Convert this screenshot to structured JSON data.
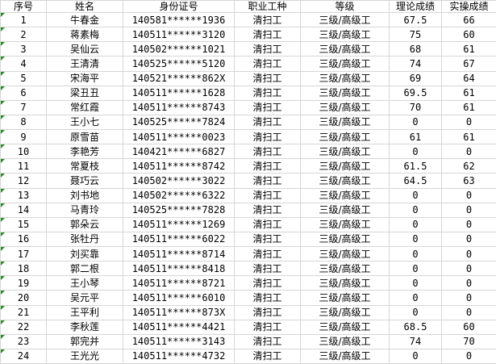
{
  "sheet": {
    "columns": [
      {
        "key": "index",
        "label": "序号"
      },
      {
        "key": "name",
        "label": "姓名"
      },
      {
        "key": "id_number",
        "label": "身份证号"
      },
      {
        "key": "occupation",
        "label": "职业工种"
      },
      {
        "key": "level",
        "label": "等级"
      },
      {
        "key": "theory_score",
        "label": "理论成绩"
      },
      {
        "key": "practical_score",
        "label": "实操成绩"
      }
    ],
    "rows": [
      {
        "index": "1",
        "name": "牛春金",
        "id_number": "140581******1936",
        "occupation": "清扫工",
        "level": "三级/高级工",
        "theory_score": "67.5",
        "practical_score": "66"
      },
      {
        "index": "2",
        "name": "蒋素梅",
        "id_number": "140511******3120",
        "occupation": "清扫工",
        "level": "三级/高级工",
        "theory_score": "75",
        "practical_score": "60"
      },
      {
        "index": "3",
        "name": "吴仙云",
        "id_number": "140502******1021",
        "occupation": "清扫工",
        "level": "三级/高级工",
        "theory_score": "68",
        "practical_score": "61"
      },
      {
        "index": "4",
        "name": "王清清",
        "id_number": "140525******5120",
        "occupation": "清扫工",
        "level": "三级/高级工",
        "theory_score": "74",
        "practical_score": "67"
      },
      {
        "index": "5",
        "name": "宋海平",
        "id_number": "140521******862X",
        "occupation": "清扫工",
        "level": "三级/高级工",
        "theory_score": "69",
        "practical_score": "64"
      },
      {
        "index": "6",
        "name": "梁丑丑",
        "id_number": "140511******1628",
        "occupation": "清扫工",
        "level": "三级/高级工",
        "theory_score": "69.5",
        "practical_score": "61"
      },
      {
        "index": "7",
        "name": "常红霞",
        "id_number": "140511******8743",
        "occupation": "清扫工",
        "level": "三级/高级工",
        "theory_score": "70",
        "practical_score": "61"
      },
      {
        "index": "8",
        "name": "王小七",
        "id_number": "140525******7824",
        "occupation": "清扫工",
        "level": "三级/高级工",
        "theory_score": "0",
        "practical_score": "0"
      },
      {
        "index": "9",
        "name": "原雪苗",
        "id_number": "140511******0023",
        "occupation": "清扫工",
        "level": "三级/高级工",
        "theory_score": "61",
        "practical_score": "61"
      },
      {
        "index": "10",
        "name": "李艳芳",
        "id_number": "140421******6827",
        "occupation": "清扫工",
        "level": "三级/高级工",
        "theory_score": "0",
        "practical_score": "0"
      },
      {
        "index": "11",
        "name": "常夏枝",
        "id_number": "140511******8742",
        "occupation": "清扫工",
        "level": "三级/高级工",
        "theory_score": "61.5",
        "practical_score": "62"
      },
      {
        "index": "12",
        "name": "聂巧云",
        "id_number": "140502******3022",
        "occupation": "清扫工",
        "level": "三级/高级工",
        "theory_score": "64.5",
        "practical_score": "63"
      },
      {
        "index": "13",
        "name": "刘书地",
        "id_number": "140502******6322",
        "occupation": "清扫工",
        "level": "三级/高级工",
        "theory_score": "0",
        "practical_score": "0"
      },
      {
        "index": "14",
        "name": "马青玲",
        "id_number": "140525******7828",
        "occupation": "清扫工",
        "level": "三级/高级工",
        "theory_score": "0",
        "practical_score": "0"
      },
      {
        "index": "15",
        "name": "郭朵云",
        "id_number": "140511******1269",
        "occupation": "清扫工",
        "level": "三级/高级工",
        "theory_score": "0",
        "practical_score": "0"
      },
      {
        "index": "16",
        "name": "张牡丹",
        "id_number": "140511******6022",
        "occupation": "清扫工",
        "level": "三级/高级工",
        "theory_score": "0",
        "practical_score": "0"
      },
      {
        "index": "17",
        "name": "刘买靠",
        "id_number": "140511******8714",
        "occupation": "清扫工",
        "level": "三级/高级工",
        "theory_score": "0",
        "practical_score": "0"
      },
      {
        "index": "18",
        "name": "郭二根",
        "id_number": "140511******8418",
        "occupation": "清扫工",
        "level": "三级/高级工",
        "theory_score": "0",
        "practical_score": "0"
      },
      {
        "index": "19",
        "name": "王小琴",
        "id_number": "140511******8721",
        "occupation": "清扫工",
        "level": "三级/高级工",
        "theory_score": "0",
        "practical_score": "0"
      },
      {
        "index": "20",
        "name": "吴元平",
        "id_number": "140511******6010",
        "occupation": "清扫工",
        "level": "三级/高级工",
        "theory_score": "0",
        "practical_score": "0"
      },
      {
        "index": "21",
        "name": "王平利",
        "id_number": "140511******873X",
        "occupation": "清扫工",
        "level": "三级/高级工",
        "theory_score": "0",
        "practical_score": "0"
      },
      {
        "index": "22",
        "name": "李秋莲",
        "id_number": "140511******4421",
        "occupation": "清扫工",
        "level": "三级/高级工",
        "theory_score": "68.5",
        "practical_score": "60"
      },
      {
        "index": "23",
        "name": "郭完并",
        "id_number": "140511******3143",
        "occupation": "清扫工",
        "level": "三级/高级工",
        "theory_score": "74",
        "practical_score": "70"
      },
      {
        "index": "24",
        "name": "王光光",
        "id_number": "140511******4732",
        "occupation": "清扫工",
        "level": "三级/高级工",
        "theory_score": "0",
        "practical_score": "0"
      }
    ],
    "icons": {
      "error_indicator": "green-corner-triangle"
    },
    "colors": {
      "gridline": "#d6d6d6",
      "text": "#000000",
      "background": "#ffffff",
      "error_triangle": "#1c941c"
    }
  }
}
